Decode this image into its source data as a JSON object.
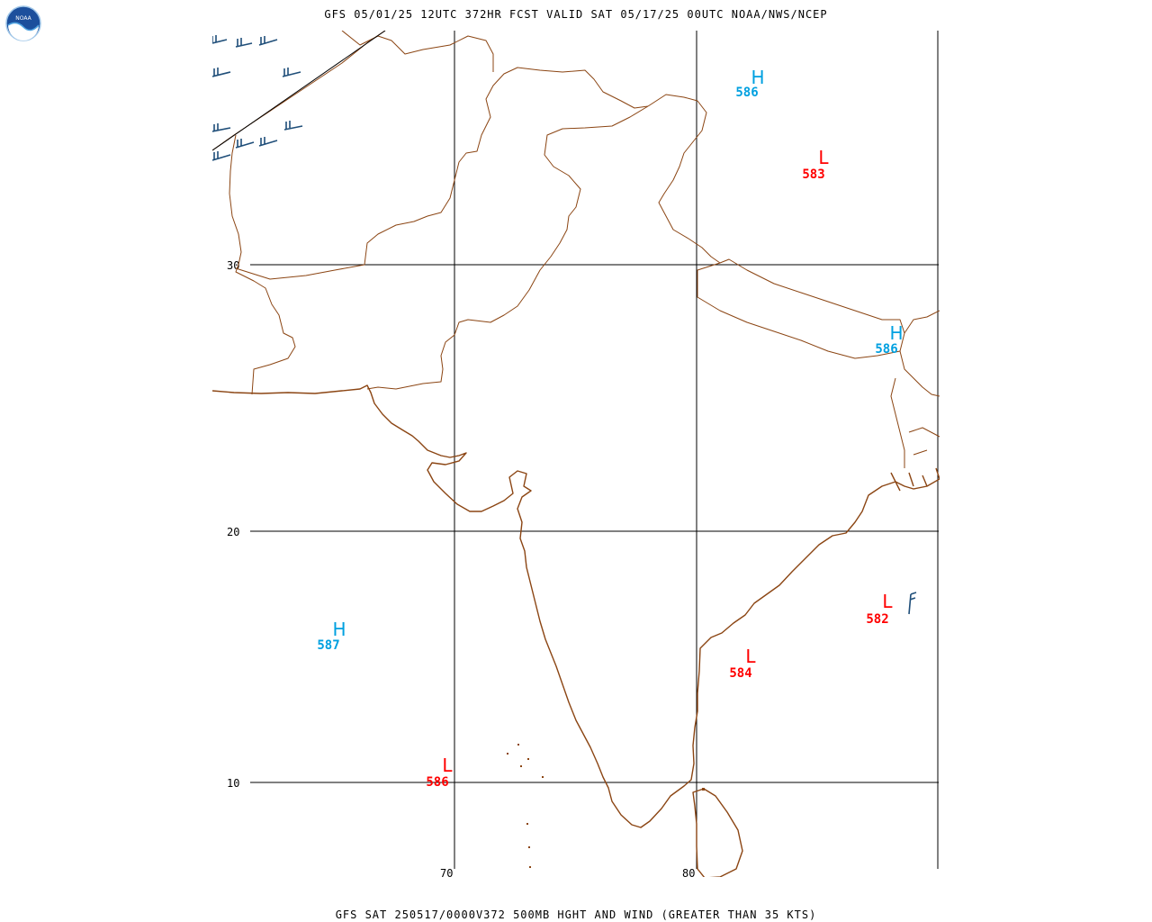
{
  "header": {
    "title": "GFS 05/01/25 12UTC 372HR FCST VALID SAT 05/17/25 00UTC NOAA/NWS/NCEP"
  },
  "footer": {
    "title": "GFS SAT 250517/0000V372 500MB HGHT AND WIND (GREATER THAN 35 KTS)"
  },
  "logo": {
    "text": "NOAA"
  },
  "grid": {
    "latitudes": [
      {
        "label": "30"
      },
      {
        "label": "20"
      },
      {
        "label": "10"
      }
    ],
    "longitudes": [
      {
        "label": "70"
      },
      {
        "label": "80"
      }
    ]
  },
  "pressure_centers": [
    {
      "type": "H",
      "value": "586",
      "color": "#00a0e0",
      "place": "north-central"
    },
    {
      "type": "L",
      "value": "583",
      "color": "#ff0000",
      "place": "tibet"
    },
    {
      "type": "H",
      "value": "586",
      "color": "#00a0e0",
      "place": "east-himalaya"
    },
    {
      "type": "L",
      "value": "582",
      "color": "#ff0000",
      "place": "bay-of-bengal"
    },
    {
      "type": "L",
      "value": "584",
      "color": "#ff0000",
      "place": "off-east-coast"
    },
    {
      "type": "H",
      "value": "587",
      "color": "#00a0e0",
      "place": "arabian-sea"
    },
    {
      "type": "L",
      "value": "586",
      "color": "#ff0000",
      "place": "lakshadweep"
    }
  ],
  "colors": {
    "coastline": "#8b4513",
    "grid": "#000000",
    "wind_barbs": "#1f4e79",
    "high": "#00a0e0",
    "low": "#ff0000"
  }
}
